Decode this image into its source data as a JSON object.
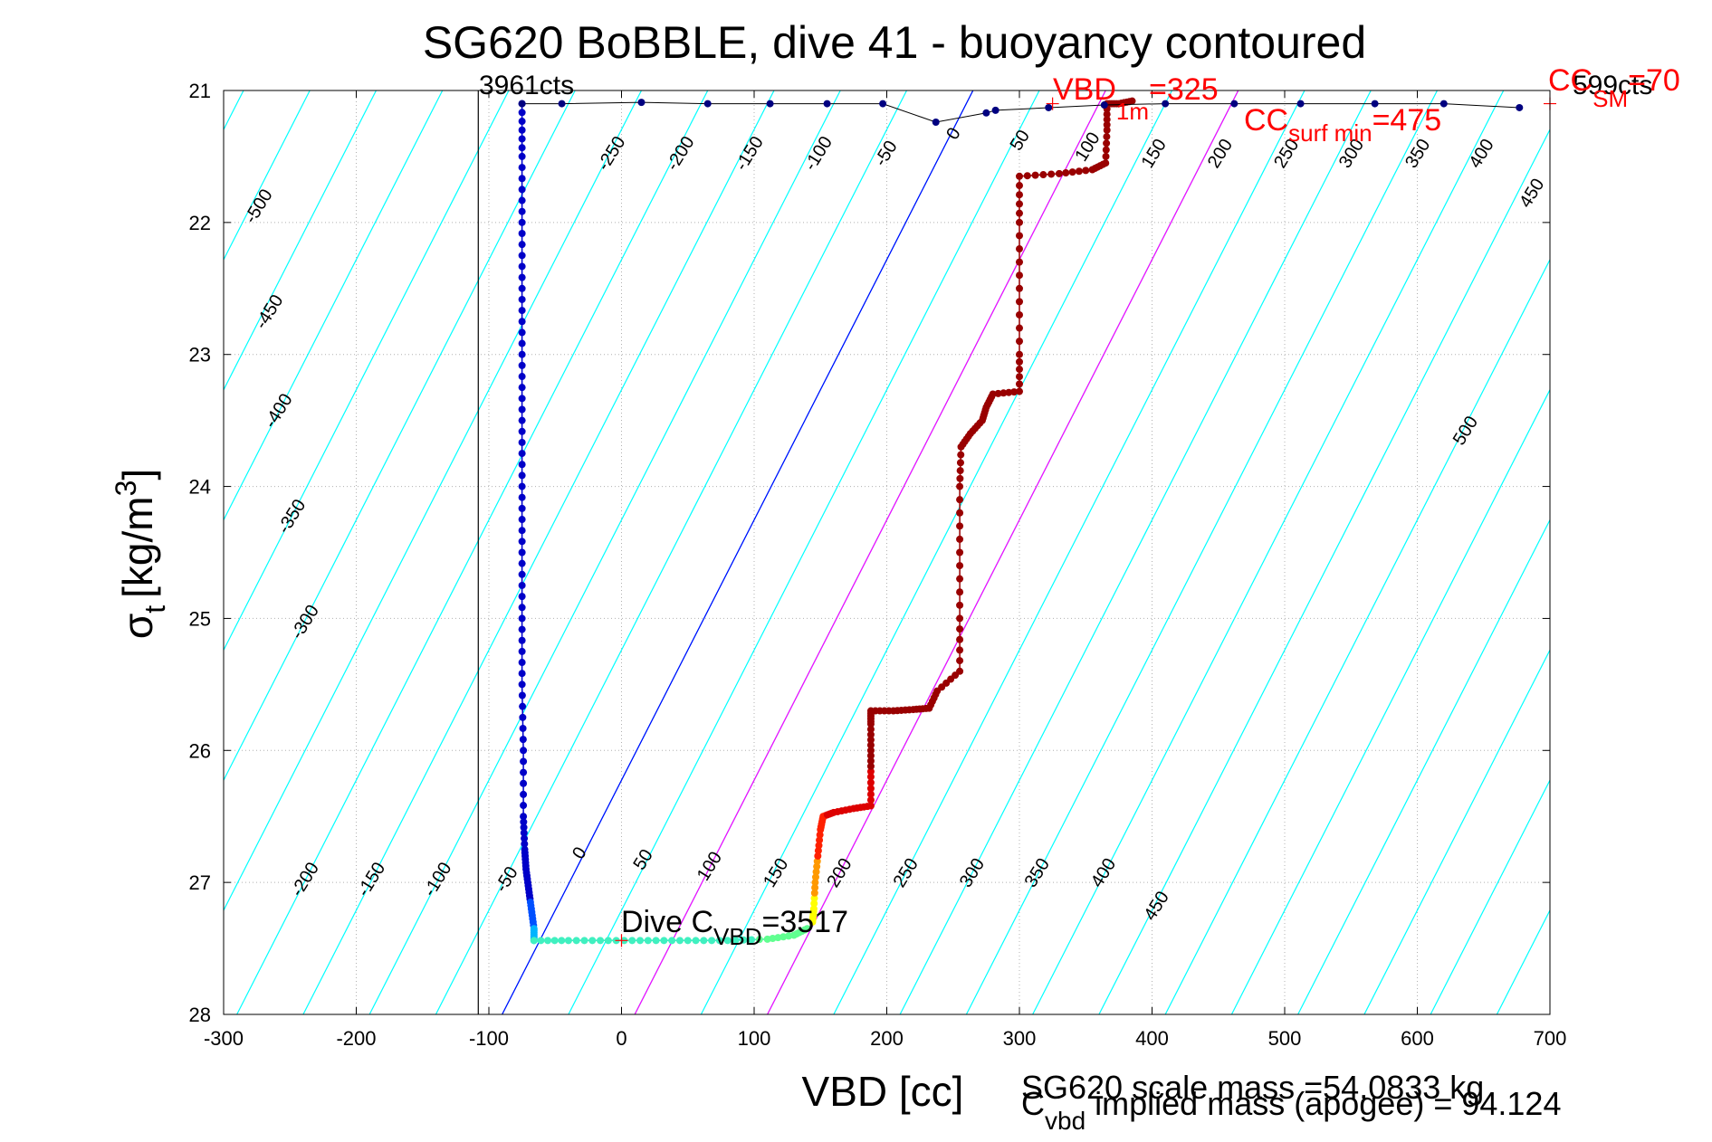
{
  "figure": {
    "title": "SG620 BoBBLE, dive 41 - buoyancy contoured",
    "xlabel": "VBD [cc]",
    "ylabel_base": "σ",
    "ylabel_sub": "t",
    "ylabel_unit": "[kg/m",
    "ylabel_sup": "3",
    "ylabel_close": "]",
    "scale_mass_text": "SG620 scale mass =54.0833 kg",
    "implied_mass_base": "C",
    "implied_mass_sub": "vbd",
    "implied_mass_rest": " implied mass (apogee) = 94.124",
    "top_left_counts": "3961cts",
    "top_right_counts": "599cts",
    "vbd1m_base": "VBD",
    "vbd1m_sub": "1m",
    "vbd1m_value": "=325",
    "ccsurf_base": "CC",
    "ccsurf_sub": "surf min",
    "ccsurf_value": "=475",
    "ccsm_base": "CC",
    "ccsm_sub": "SM",
    "ccsm_value": "=70",
    "dive_c_base": "Dive C",
    "dive_c_sub": "VBD",
    "dive_c_value": "=3517",
    "colors": {
      "contour": "#00ffff",
      "neutral_line": "#0000ff",
      "magenta_lines": "#ff00ff",
      "marker": "#ff0000",
      "apogee_trace": "#000080"
    }
  },
  "chart_data": {
    "type": "scatter",
    "xlim": [
      -300,
      700
    ],
    "ylim": [
      28,
      21
    ],
    "x_ticks": [
      -300,
      -200,
      -100,
      0,
      100,
      200,
      300,
      400,
      500,
      600,
      700
    ],
    "y_ticks": [
      21,
      22,
      23,
      24,
      25,
      26,
      27,
      28
    ],
    "x_tick_labels": [
      "-300",
      "-200",
      "-100",
      "0",
      "100",
      "200",
      "300",
      "400",
      "500",
      "600",
      "700"
    ],
    "y_tick_labels": [
      "21",
      "22",
      "23",
      "24",
      "25",
      "26",
      "27",
      "28"
    ],
    "grid": true,
    "vertical_line_x": -108,
    "buoyancy_contour_values": [
      -500,
      -450,
      -400,
      -350,
      -300,
      -250,
      -200,
      -150,
      -100,
      -50,
      0,
      50,
      100,
      150,
      200,
      250,
      300,
      350,
      400,
      450,
      500
    ],
    "contour_labels_upper": [
      {
        "text": "-500",
        "x": -270,
        "y": 21.9
      },
      {
        "text": "-450",
        "x": -262,
        "y": 22.7
      },
      {
        "text": "-400",
        "x": -255,
        "y": 23.45
      },
      {
        "text": "-350",
        "x": -245,
        "y": 24.25
      },
      {
        "text": "-300",
        "x": -235,
        "y": 25.05
      },
      {
        "text": "-250",
        "x": -4,
        "y": 21.5
      },
      {
        "text": "-200",
        "x": 48,
        "y": 21.5
      },
      {
        "text": "-150",
        "x": 100,
        "y": 21.5
      },
      {
        "text": "-100",
        "x": 152,
        "y": 21.5
      },
      {
        "text": "-50",
        "x": 203,
        "y": 21.5
      },
      {
        "text": "0",
        "x": 254,
        "y": 21.35
      },
      {
        "text": "50",
        "x": 304,
        "y": 21.4
      },
      {
        "text": "100",
        "x": 355,
        "y": 21.45
      },
      {
        "text": "150",
        "x": 405,
        "y": 21.5
      },
      {
        "text": "200",
        "x": 455,
        "y": 21.5
      },
      {
        "text": "250",
        "x": 505,
        "y": 21.5
      },
      {
        "text": "300",
        "x": 554,
        "y": 21.5
      },
      {
        "text": "350",
        "x": 604,
        "y": 21.5
      },
      {
        "text": "400",
        "x": 652,
        "y": 21.5
      },
      {
        "text": "450",
        "x": 690,
        "y": 21.8
      },
      {
        "text": "500",
        "x": 640,
        "y": 23.6
      }
    ],
    "contour_labels_lower": [
      {
        "text": "-200",
        "x": -235,
        "y": 27.0
      },
      {
        "text": "-150",
        "x": -185,
        "y": 27.0
      },
      {
        "text": "-100",
        "x": -135,
        "y": 27.0
      },
      {
        "text": "-50",
        "x": -83,
        "y": 27.0
      },
      {
        "text": "0",
        "x": -28,
        "y": 26.8
      },
      {
        "text": "50",
        "x": 20,
        "y": 26.85
      },
      {
        "text": "100",
        "x": 70,
        "y": 26.9
      },
      {
        "text": "150",
        "x": 120,
        "y": 26.95
      },
      {
        "text": "200",
        "x": 168,
        "y": 26.95
      },
      {
        "text": "250",
        "x": 218,
        "y": 26.95
      },
      {
        "text": "300",
        "x": 268,
        "y": 26.95
      },
      {
        "text": "350",
        "x": 317,
        "y": 26.95
      },
      {
        "text": "400",
        "x": 367,
        "y": 26.95
      },
      {
        "text": "450",
        "x": 407,
        "y": 27.2
      }
    ],
    "series": [
      {
        "points_descent": [
          [
            -75,
            21.1
          ],
          [
            -75,
            21.5
          ],
          [
            -75,
            22.0
          ],
          [
            -75,
            22.5
          ],
          [
            -75,
            23.0
          ],
          [
            -75,
            23.5
          ],
          [
            -75,
            24.0
          ],
          [
            -75,
            24.5
          ],
          [
            -75,
            25.0
          ],
          [
            -75,
            25.5
          ],
          [
            -74,
            26.0
          ],
          [
            -74,
            26.5
          ],
          [
            -73,
            26.75
          ],
          [
            -72,
            26.9
          ],
          [
            -70,
            27.05
          ],
          [
            -68,
            27.2
          ],
          [
            -66,
            27.35
          ],
          [
            -66,
            27.44
          ]
        ],
        "points_bottom": [
          [
            -66,
            27.44
          ],
          [
            -40,
            27.44
          ],
          [
            -10,
            27.44
          ],
          [
            20,
            27.44
          ],
          [
            50,
            27.44
          ],
          [
            80,
            27.44
          ],
          [
            110,
            27.43
          ],
          [
            130,
            27.4
          ],
          [
            140,
            27.35
          ]
        ],
        "points_ascent": [
          [
            144,
            27.3
          ],
          [
            145,
            27.2
          ],
          [
            146,
            27.0
          ],
          [
            148,
            26.8
          ],
          [
            150,
            26.6
          ],
          [
            152,
            26.5
          ],
          [
            160,
            26.47
          ],
          [
            175,
            26.44
          ],
          [
            188,
            26.42
          ],
          [
            188,
            26.2
          ],
          [
            188,
            26.0
          ],
          [
            188,
            25.8
          ],
          [
            188,
            25.7
          ],
          [
            205,
            25.7
          ],
          [
            220,
            25.69
          ],
          [
            232,
            25.68
          ],
          [
            238,
            25.55
          ],
          [
            255,
            25.4
          ],
          [
            255,
            25.0
          ],
          [
            255,
            24.5
          ],
          [
            255,
            24.0
          ],
          [
            256,
            23.7
          ],
          [
            263,
            23.6
          ],
          [
            272,
            23.5
          ],
          [
            275,
            23.4
          ],
          [
            280,
            23.3
          ],
          [
            300,
            23.28
          ],
          [
            300,
            23.0
          ],
          [
            300,
            22.5
          ],
          [
            300,
            22.0
          ],
          [
            300,
            21.65
          ],
          [
            330,
            21.63
          ],
          [
            355,
            21.6
          ],
          [
            365,
            21.55
          ],
          [
            366,
            21.3
          ],
          [
            366,
            21.1
          ],
          [
            375,
            21.1
          ],
          [
            385,
            21.08
          ]
        ],
        "points_surface": [
          [
            -75,
            21.1
          ],
          [
            -45,
            21.1
          ],
          [
            15,
            21.09
          ],
          [
            65,
            21.1
          ],
          [
            112,
            21.1
          ],
          [
            155,
            21.1
          ],
          [
            197,
            21.1
          ],
          [
            237,
            21.24
          ],
          [
            275,
            21.17
          ],
          [
            282,
            21.15
          ],
          [
            322,
            21.13
          ],
          [
            364,
            21.11
          ],
          [
            410,
            21.1
          ],
          [
            462,
            21.1
          ],
          [
            512,
            21.1
          ],
          [
            568,
            21.1
          ],
          [
            620,
            21.1
          ],
          [
            677,
            21.13
          ]
        ]
      }
    ],
    "neutral_line": [
      [
        -90,
        28.0
      ],
      [
        265,
        21.0
      ]
    ],
    "magenta_lines": [
      [
        [
          10,
          28.0
        ],
        [
          365,
          21.0
        ]
      ],
      [
        [
          110,
          28.0
        ],
        [
          465,
          21.0
        ]
      ]
    ],
    "markers": [
      {
        "x": 0,
        "y": 27.44
      },
      {
        "x": 325,
        "y": 21.1
      },
      {
        "x": 700,
        "y": 21.1
      }
    ]
  }
}
